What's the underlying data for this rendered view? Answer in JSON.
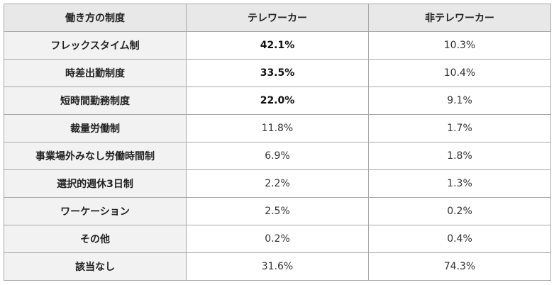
{
  "table": {
    "headers": [
      "働き方の制度",
      "テレワーカー",
      "非テレワーカー"
    ],
    "rows": [
      {
        "label": "フレックスタイム制",
        "teleworker": "42.1%",
        "non_teleworker": "10.3%",
        "emphasis": true
      },
      {
        "label": "時差出勤制度",
        "teleworker": "33.5%",
        "non_teleworker": "10.4%",
        "emphasis": true
      },
      {
        "label": "短時間勤務制度",
        "teleworker": "22.0%",
        "non_teleworker": "9.1%",
        "emphasis": true
      },
      {
        "label": "裁量労働制",
        "teleworker": "11.8%",
        "non_teleworker": "1.7%",
        "emphasis": false
      },
      {
        "label": "事業場外みなし労働時間制",
        "teleworker": "6.9%",
        "non_teleworker": "1.8%",
        "emphasis": false
      },
      {
        "label": "選択的週休3日制",
        "teleworker": "2.2%",
        "non_teleworker": "1.3%",
        "emphasis": false
      },
      {
        "label": "ワーケーション",
        "teleworker": "2.5%",
        "non_teleworker": "0.2%",
        "emphasis": false
      },
      {
        "label": "その他",
        "teleworker": "0.2%",
        "non_teleworker": "0.4%",
        "emphasis": false
      },
      {
        "label": "該当なし",
        "teleworker": "31.6%",
        "non_teleworker": "74.3%",
        "emphasis": false
      }
    ]
  }
}
